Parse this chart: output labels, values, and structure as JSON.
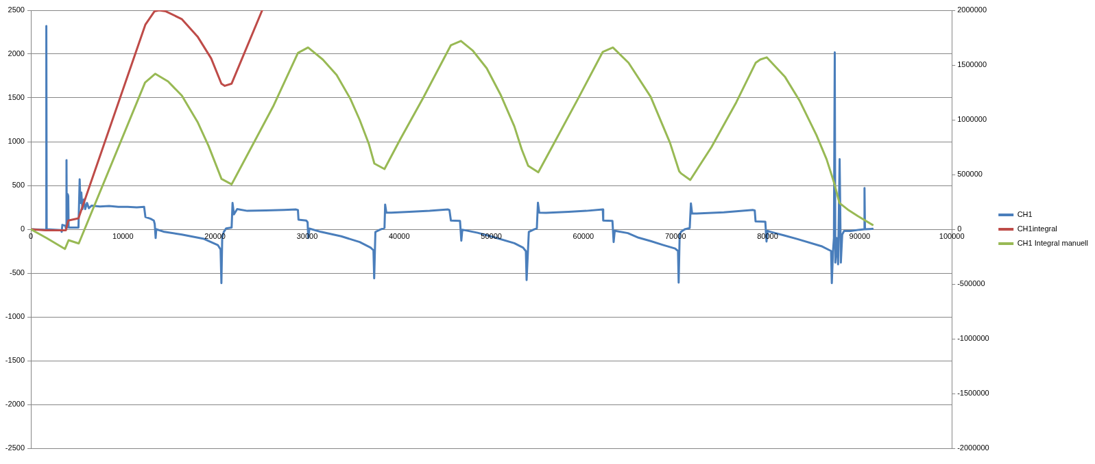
{
  "chart_data": {
    "type": "line",
    "series": [
      {
        "name": "CH1",
        "color": "#4a7ebb",
        "x": [
          0,
          1600,
          1650,
          1680,
          1720,
          3300,
          3350,
          3420,
          3750,
          3800,
          3870,
          3900,
          3950,
          4000,
          4060,
          4100,
          5100,
          5170,
          5300,
          5380,
          5480,
          5600,
          5750,
          5900,
          6100,
          6300,
          6600,
          7500,
          8500,
          9500,
          10500,
          11500,
          12300,
          12440,
          13000,
          13350,
          13450,
          13550,
          13620,
          14500,
          16400,
          18800,
          20300,
          20600,
          20690,
          20780,
          20950,
          21210,
          21800,
          21900,
          22050,
          22400,
          23500,
          25500,
          27500,
          28800,
          29000,
          29060,
          29900,
          30050,
          30120,
          30250,
          31500,
          33700,
          35700,
          36900,
          37200,
          37280,
          37410,
          37900,
          38400,
          38470,
          38600,
          39140,
          41100,
          43300,
          45300,
          45450,
          45610,
          46600,
          46740,
          46850,
          48500,
          50000,
          52500,
          53450,
          53750,
          53830,
          54070,
          54570,
          54940,
          55060,
          55200,
          55930,
          58400,
          60300,
          62100,
          62150,
          63150,
          63280,
          63400,
          64820,
          65980,
          67300,
          68620,
          69950,
          70270,
          70340,
          70450,
          70610,
          71010,
          71540,
          71670,
          71800,
          72070,
          75240,
          78420,
          78600,
          78690,
          79750,
          79880,
          80000,
          80270,
          81800,
          83190,
          85840,
          86890,
          86970,
          87100,
          87200,
          87290,
          87350,
          87500,
          87650,
          87820,
          87950,
          88100,
          88300,
          89000,
          90000,
          90480,
          90520,
          90570,
          91400
        ],
        "values": [
          0,
          -5,
          0,
          2320,
          0,
          -10,
          -30,
          50,
          40,
          10,
          790,
          20,
          30,
          400,
          380,
          20,
          20,
          20,
          570,
          300,
          420,
          230,
          340,
          230,
          300,
          240,
          270,
          260,
          265,
          255,
          255,
          250,
          255,
          140,
          120,
          100,
          60,
          -100,
          0,
          -30,
          -60,
          -110,
          -180,
          -230,
          -615,
          -90,
          -30,
          10,
          20,
          300,
          170,
          230,
          210,
          215,
          220,
          226,
          220,
          110,
          100,
          80,
          -100,
          8,
          -30,
          -80,
          -146,
          -210,
          -240,
          -560,
          -31,
          -5,
          15,
          282,
          190,
          190,
          200,
          210,
          226,
          220,
          100,
          95,
          -130,
          -5,
          -40,
          -82,
          -159,
          -210,
          -250,
          -580,
          -31,
          -5,
          10,
          303,
          190,
          187,
          200,
          210,
          226,
          100,
          95,
          -146,
          -18,
          -44,
          -96,
          -135,
          -179,
          -220,
          -248,
          -610,
          -60,
          -28,
          0,
          14,
          295,
          180,
          179,
          193,
          220,
          215,
          90,
          85,
          -140,
          -20,
          -28,
          -70,
          -110,
          -193,
          -248,
          -615,
          -250,
          -100,
          2020,
          -380,
          -100,
          -400,
          800,
          -380,
          -60,
          -20,
          -20,
          -5,
          0,
          470,
          0,
          5
        ]
      },
      {
        "name": "CH1integral",
        "color": "#be4b48",
        "axis": "y2",
        "x": [
          0,
          1600,
          3800,
          4060,
          5170,
          12440,
          13420,
          13920,
          14660,
          16380,
          18100,
          19580,
          20690,
          21060,
          21800,
          25120
        ],
        "values": [
          0,
          -10000,
          -10000,
          80000,
          100000,
          1870000,
          1990000,
          2000000,
          1990000,
          1920000,
          1760000,
          1560000,
          1330000,
          1310000,
          1330000,
          2000000
        ]
      },
      {
        "name": "CH1 Integral manuell",
        "color": "#98b954",
        "axis": "y2",
        "x": [
          0,
          1700,
          3700,
          4100,
          5200,
          12400,
          13500,
          14900,
          16400,
          18100,
          19300,
          20700,
          21800,
          26300,
          29000,
          30100,
          31700,
          33200,
          34700,
          35700,
          36700,
          37300,
          38400,
          40100,
          42600,
          45600,
          46700,
          48000,
          49500,
          51000,
          52500,
          53300,
          54000,
          55100,
          56900,
          59400,
          62100,
          63200,
          64900,
          67300,
          69400,
          70400,
          70600,
          71600,
          73900,
          76600,
          78700,
          79200,
          79900,
          81900,
          83500,
          85300,
          86400,
          87200,
          87800,
          88700,
          89800,
          91400
        ],
        "values": [
          0,
          -80000,
          -180000,
          -100000,
          -130000,
          1340000,
          1420000,
          1350000,
          1220000,
          980000,
          760000,
          460000,
          410000,
          1120000,
          1610000,
          1660000,
          1550000,
          1410000,
          1190000,
          1000000,
          780000,
          600000,
          550000,
          820000,
          1200000,
          1680000,
          1720000,
          1630000,
          1470000,
          1230000,
          940000,
          730000,
          580000,
          520000,
          800000,
          1190000,
          1620000,
          1660000,
          1520000,
          1210000,
          790000,
          530000,
          510000,
          450000,
          750000,
          1160000,
          1520000,
          1550000,
          1570000,
          1390000,
          1170000,
          860000,
          640000,
          430000,
          240000,
          180000,
          120000,
          40000
        ]
      }
    ],
    "xlim": [
      0,
      100000
    ],
    "xticks": [
      0,
      10000,
      20000,
      30000,
      40000,
      50000,
      60000,
      70000,
      80000,
      90000,
      100000
    ],
    "ylim": [
      -2500,
      2500
    ],
    "yticks": [
      -2500,
      -2000,
      -1500,
      -1000,
      -500,
      0,
      500,
      1000,
      1500,
      2000,
      2500
    ],
    "y2lim": [
      -2000000,
      2000000
    ],
    "y2ticks": [
      -2000000,
      -1500000,
      -1000000,
      -500000,
      0,
      500000,
      1000000,
      1500000,
      2000000
    ],
    "grid": "y",
    "legend": "right"
  }
}
